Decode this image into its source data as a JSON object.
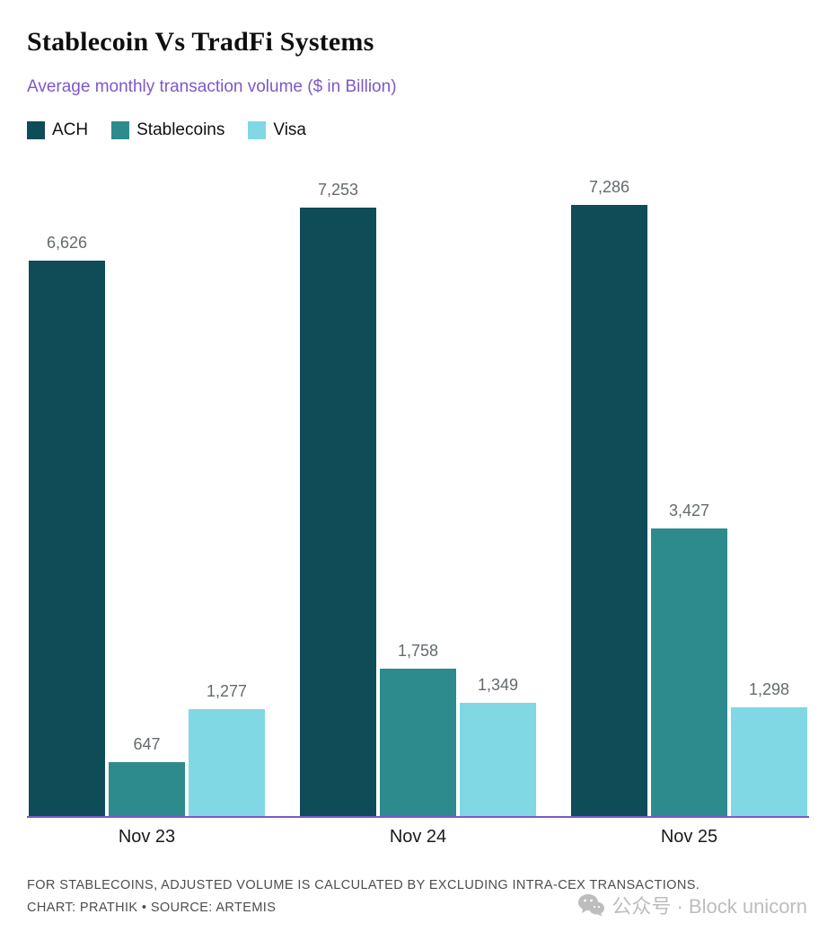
{
  "header": {
    "title": "Stablecoin Vs TradFi Systems",
    "subtitle": "Average monthly transaction volume ($ in Billion)"
  },
  "chart_data": {
    "type": "bar",
    "title": "Stablecoin Vs TradFi Systems",
    "subtitle": "Average monthly transaction volume ($ in Billion)",
    "categories": [
      "Nov 23",
      "Nov 24",
      "Nov 25"
    ],
    "series": [
      {
        "name": "ACH",
        "color": "#0e4c57",
        "values": [
          6626,
          7253,
          7286
        ]
      },
      {
        "name": "Stablecoins",
        "color": "#2d8b8d",
        "values": [
          647,
          1758,
          3427
        ]
      },
      {
        "name": "Visa",
        "color": "#7fd8e3",
        "values": [
          1277,
          1349,
          1298
        ]
      }
    ],
    "value_labels": [
      [
        "6,626",
        "7,253",
        "7,286"
      ],
      [
        "647",
        "1,758",
        "3,427"
      ],
      [
        "1,277",
        "1,349",
        "1,298"
      ]
    ],
    "ylim": [
      0,
      7500
    ],
    "grid": false,
    "legend_position": "top",
    "axis_line_color": "#7d58c8"
  },
  "footer": {
    "note": "FOR STABLECOINS, ADJUSTED VOLUME IS CALCULATED BY EXCLUDING INTRA-CEX TRANSACTIONS.",
    "credit": "CHART: PRATHIK • SOURCE: ARTEMIS",
    "watermark": "公众号 · Block unicorn"
  },
  "colors": {
    "subtitle_text": "#7d58c8",
    "baseline": "#7d58c8",
    "value_label_text": "#636b6d",
    "footer_text": "#4d4d4d",
    "watermark_text": "#bdbdbd"
  }
}
